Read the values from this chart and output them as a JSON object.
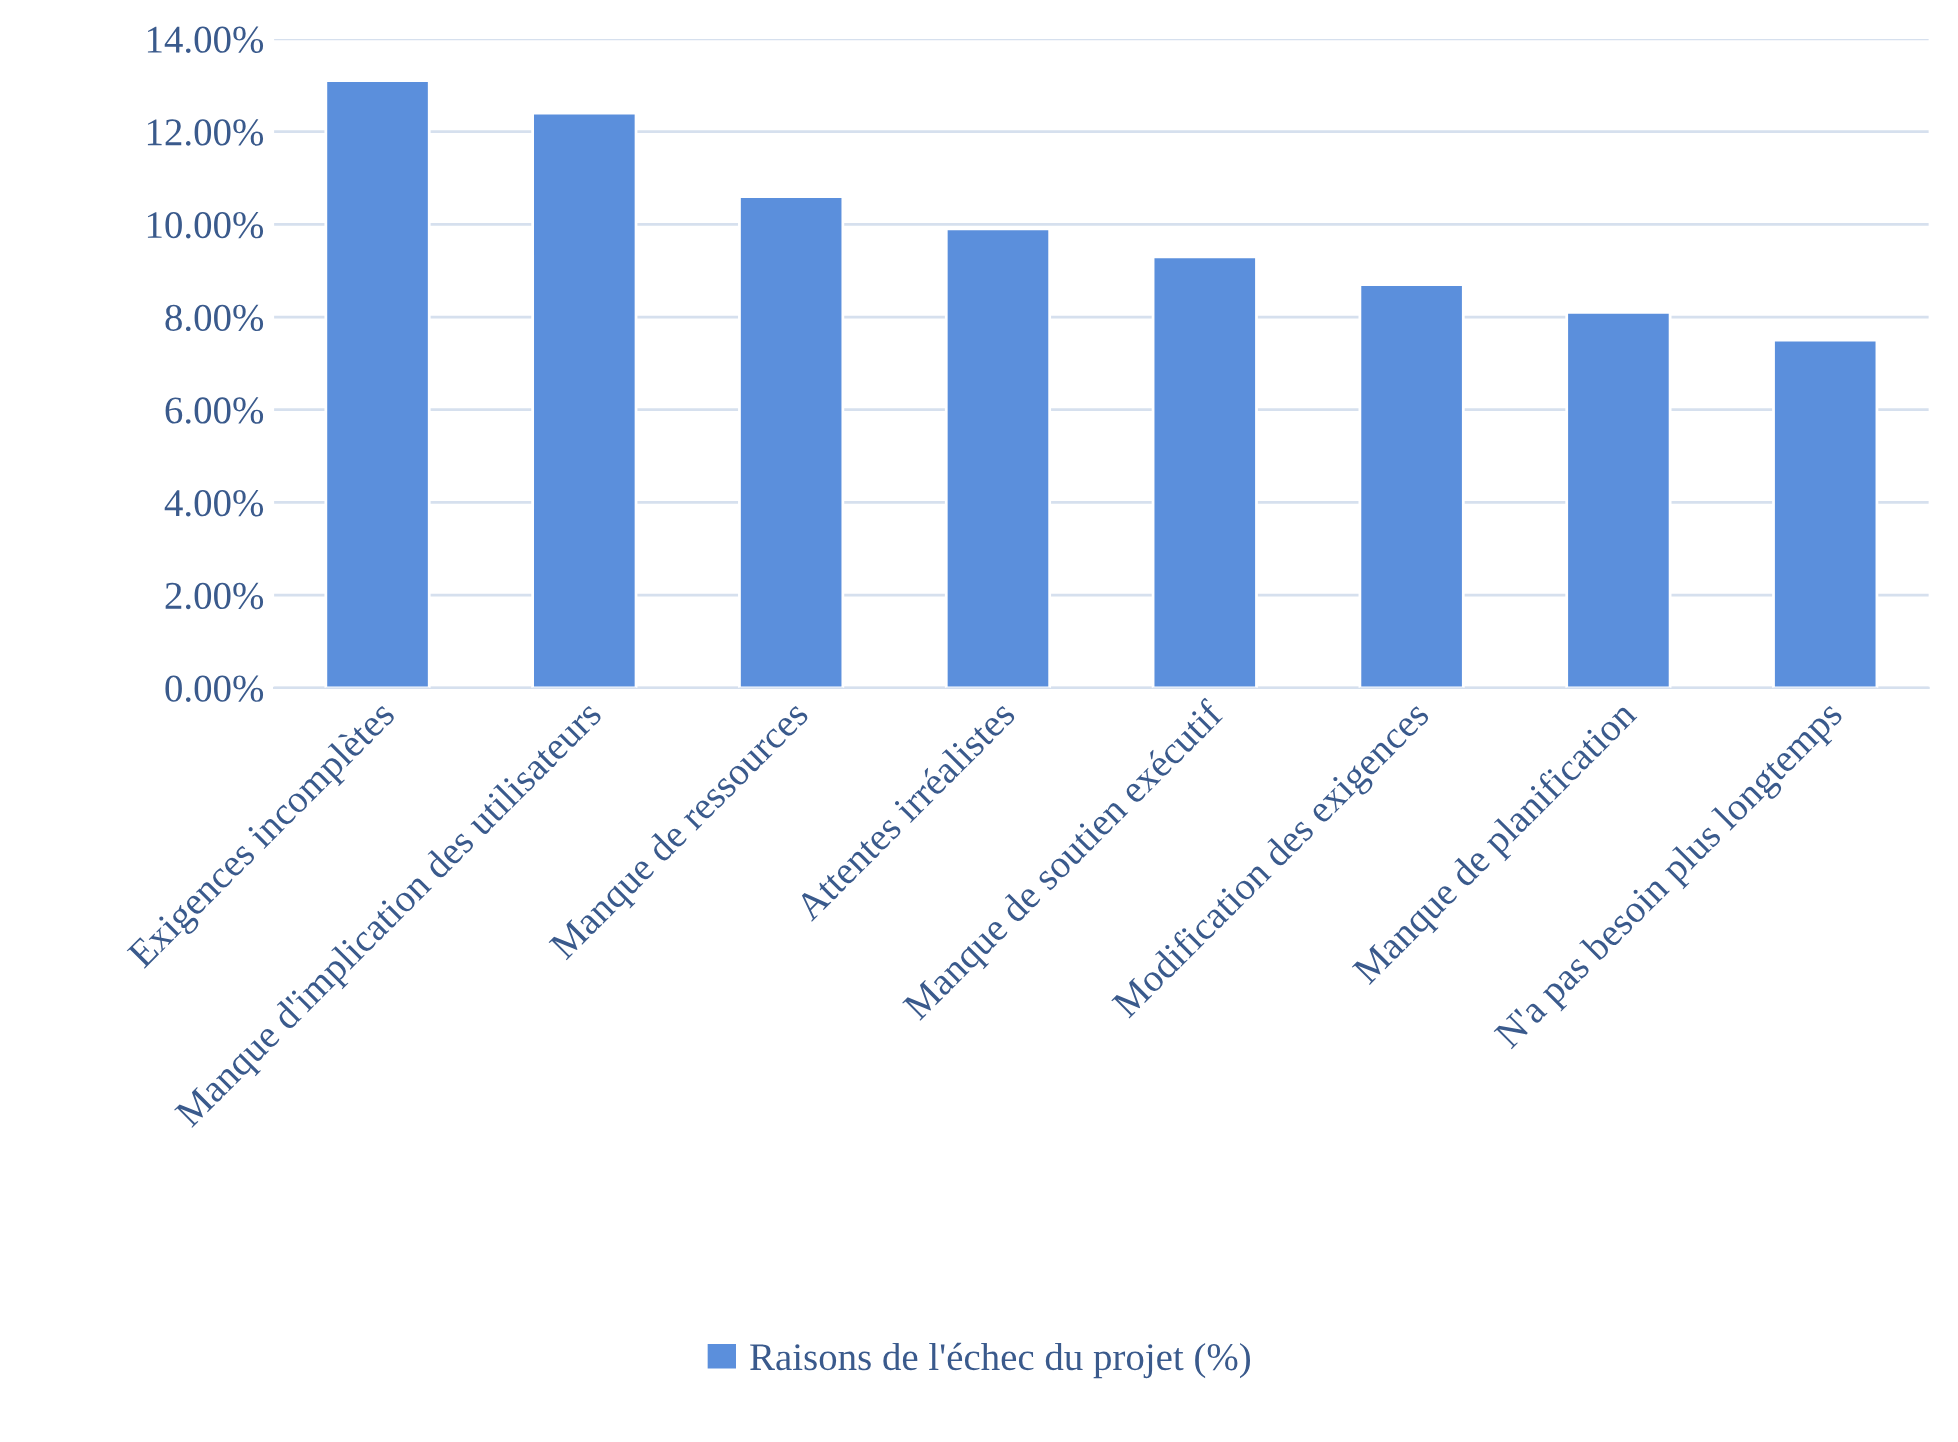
{
  "chart_data": {
    "type": "bar",
    "categories": [
      "Exigences incomplètes",
      "Manque d'implication des utilisateurs",
      "Manque de ressources",
      "Attentes irréalistes",
      "Manque de soutien exécutif",
      "Modification des exigences",
      "Manque de planification",
      "N'a pas besoin plus longtemps"
    ],
    "series": [
      {
        "name": "Raisons de l'échec du projet (%)",
        "color": "#5b8fdc",
        "values": [
          13.1,
          12.4,
          10.6,
          9.9,
          9.3,
          8.7,
          8.1,
          7.5
        ]
      }
    ],
    "ylim": [
      0,
      14
    ],
    "yticks": [
      {
        "value": 0,
        "label": "0.00%"
      },
      {
        "value": 2,
        "label": "2.00%"
      },
      {
        "value": 4,
        "label": "4.00%"
      },
      {
        "value": 6,
        "label": "6.00%"
      },
      {
        "value": 8,
        "label": "8.00%"
      },
      {
        "value": 10,
        "label": "10.00%"
      },
      {
        "value": 12,
        "label": "12.00%"
      },
      {
        "value": 14,
        "label": "14.00%"
      }
    ],
    "grid": "y",
    "legend": "bottom"
  }
}
